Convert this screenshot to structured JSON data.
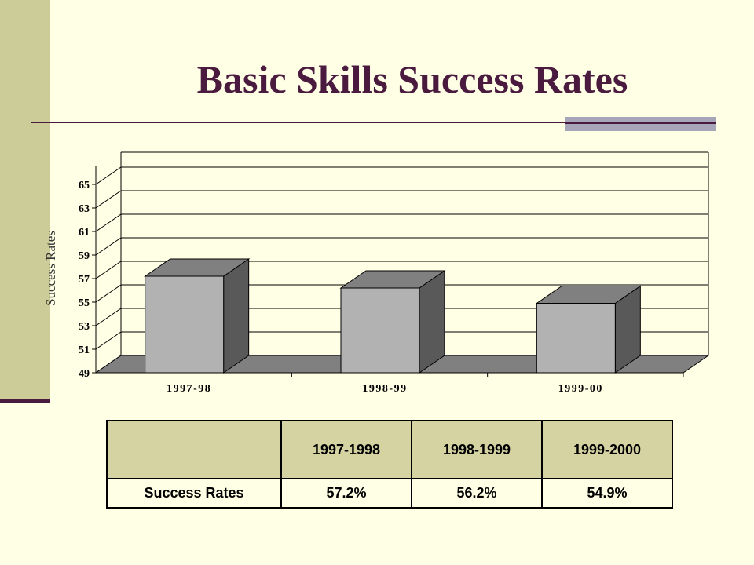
{
  "slide": {
    "title": "Basic Skills Success Rates"
  },
  "chart_data": {
    "type": "bar",
    "style": "3d-column",
    "categories": [
      "1997-98",
      "1998-99",
      "1999-00"
    ],
    "values": [
      57.2,
      56.2,
      54.9
    ],
    "ylabel": "Success Rates",
    "ylim": [
      49,
      65
    ],
    "yticks": [
      49,
      51,
      53,
      55,
      57,
      59,
      61,
      63,
      65
    ],
    "grid": true,
    "legend": "none",
    "colors": {
      "bar_front": "#B2B2B2",
      "bar_side": "#595959",
      "bar_top": "#808080",
      "floor": "#808080"
    }
  },
  "table": {
    "headers": [
      "",
      "1997-1998",
      "1998-1999",
      "1999-2000"
    ],
    "rows": [
      [
        "Success Rates",
        "57.2%",
        "56.2%",
        "54.9%"
      ]
    ]
  },
  "colors": {
    "background": "#FFFFE5",
    "sidebar": "#CCCC99",
    "title": "#4B1B3F",
    "table_header": "#D6D3A2"
  }
}
